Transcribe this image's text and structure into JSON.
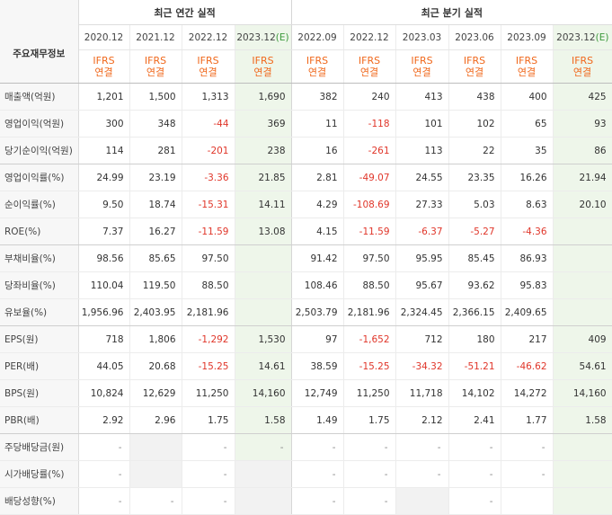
{
  "table": {
    "corner_label": "주요재무정보",
    "group_annual": "최근 연간 실적",
    "group_quarterly": "최근 분기 실적",
    "periods": [
      "2020.12",
      "2021.12",
      "2022.12",
      "2023.12(E)",
      "2022.09",
      "2022.12",
      "2023.03",
      "2023.06",
      "2023.09",
      "2023.12(E)"
    ],
    "ifrs_line1": "IFRS",
    "ifrs_line2": "연결",
    "rows": [
      {
        "label": "매출액(억원)",
        "values": [
          "1,201",
          "1,500",
          "1,313",
          "1,690",
          "382",
          "240",
          "413",
          "438",
          "400",
          "425"
        ]
      },
      {
        "label": "영업이익(억원)",
        "values": [
          "300",
          "348",
          "-44",
          "369",
          "11",
          "-118",
          "101",
          "102",
          "65",
          "93"
        ]
      },
      {
        "label": "당기순이익(억원)",
        "values": [
          "114",
          "281",
          "-201",
          "238",
          "16",
          "-261",
          "113",
          "22",
          "35",
          "86"
        ]
      },
      {
        "label": "영업이익률(%)",
        "values": [
          "24.99",
          "23.19",
          "-3.36",
          "21.85",
          "2.81",
          "-49.07",
          "24.55",
          "23.35",
          "16.26",
          "21.94"
        ]
      },
      {
        "label": "순이익률(%)",
        "values": [
          "9.50",
          "18.74",
          "-15.31",
          "14.11",
          "4.29",
          "-108.69",
          "27.33",
          "5.03",
          "8.63",
          "20.10"
        ]
      },
      {
        "label": "ROE(%)",
        "values": [
          "7.37",
          "16.27",
          "-11.59",
          "13.08",
          "4.15",
          "-11.59",
          "-6.37",
          "-5.27",
          "-4.36",
          ""
        ]
      },
      {
        "label": "부채비율(%)",
        "values": [
          "98.56",
          "85.65",
          "97.50",
          "",
          "91.42",
          "97.50",
          "95.95",
          "85.45",
          "86.93",
          ""
        ]
      },
      {
        "label": "당좌비율(%)",
        "values": [
          "110.04",
          "119.50",
          "88.50",
          "",
          "108.46",
          "88.50",
          "95.67",
          "93.62",
          "95.83",
          ""
        ]
      },
      {
        "label": "유보율(%)",
        "values": [
          "1,956.96",
          "2,403.95",
          "2,181.96",
          "",
          "2,503.79",
          "2,181.96",
          "2,324.45",
          "2,366.15",
          "2,409.65",
          ""
        ]
      },
      {
        "label": "EPS(원)",
        "values": [
          "718",
          "1,806",
          "-1,292",
          "1,530",
          "97",
          "-1,652",
          "712",
          "180",
          "217",
          "409"
        ]
      },
      {
        "label": "PER(배)",
        "values": [
          "44.05",
          "20.68",
          "-15.25",
          "14.61",
          "38.59",
          "-15.25",
          "-34.32",
          "-51.21",
          "-46.62",
          "54.61"
        ]
      },
      {
        "label": "BPS(원)",
        "values": [
          "10,824",
          "12,629",
          "11,250",
          "14,160",
          "12,749",
          "11,250",
          "11,718",
          "14,102",
          "14,272",
          "14,160"
        ]
      },
      {
        "label": "PBR(배)",
        "values": [
          "2.92",
          "2.96",
          "1.75",
          "1.58",
          "1.49",
          "1.75",
          "2.12",
          "2.41",
          "1.77",
          "1.58"
        ]
      },
      {
        "label": "주당배당금(원)",
        "values": [
          "-",
          "",
          "-",
          "-",
          "-",
          "-",
          "-",
          "-",
          "-",
          ""
        ]
      },
      {
        "label": "시가배당률(%)",
        "values": [
          "-",
          "",
          "-",
          "",
          "-",
          "-",
          "-",
          "-",
          "-",
          ""
        ]
      },
      {
        "label": "배당성향(%)",
        "values": [
          "-",
          "-",
          "-",
          "",
          "-",
          "-",
          "",
          "-",
          "",
          ""
        ]
      }
    ]
  }
}
